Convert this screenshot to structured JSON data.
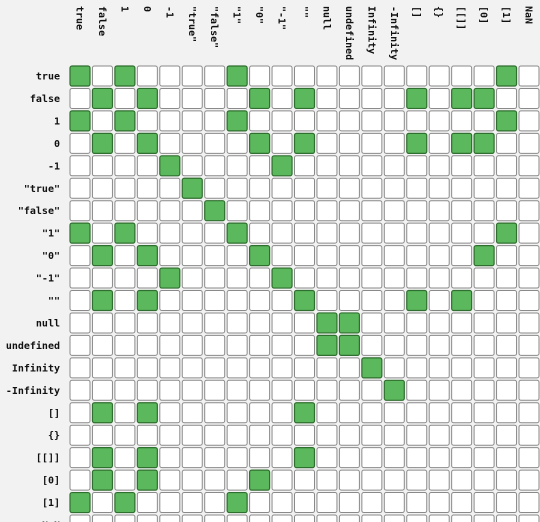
{
  "chart_data": {
    "type": "heatmap",
    "title": "",
    "xlabel": "",
    "ylabel": "",
    "values_legend": {
      "true": "true",
      "false": "false"
    },
    "col_labels": [
      "true",
      "false",
      "1",
      "0",
      "-1",
      "\"true\"",
      "\"false\"",
      "\"1\"",
      "\"0\"",
      "\"-1\"",
      "\"\"",
      "null",
      "undefined",
      "Infinity",
      "-Infinity",
      "[]",
      "{}",
      "[[]]",
      "[0]",
      "[1]",
      "NaN"
    ],
    "row_labels": [
      "true",
      "false",
      "1",
      "0",
      "-1",
      "\"true\"",
      "\"false\"",
      "\"1\"",
      "\"0\"",
      "\"-1\"",
      "\"\"",
      "null",
      "undefined",
      "Infinity",
      "-Infinity",
      "[]",
      "{}",
      "[[]]",
      "[0]",
      "[1]",
      "NaN"
    ],
    "matrix": [
      [
        1,
        0,
        1,
        0,
        0,
        0,
        0,
        1,
        0,
        0,
        0,
        0,
        0,
        0,
        0,
        0,
        0,
        0,
        0,
        1,
        0
      ],
      [
        0,
        1,
        0,
        1,
        0,
        0,
        0,
        0,
        1,
        0,
        1,
        0,
        0,
        0,
        0,
        1,
        0,
        1,
        1,
        0,
        0
      ],
      [
        1,
        0,
        1,
        0,
        0,
        0,
        0,
        1,
        0,
        0,
        0,
        0,
        0,
        0,
        0,
        0,
        0,
        0,
        0,
        1,
        0
      ],
      [
        0,
        1,
        0,
        1,
        0,
        0,
        0,
        0,
        1,
        0,
        1,
        0,
        0,
        0,
        0,
        1,
        0,
        1,
        1,
        0,
        0
      ],
      [
        0,
        0,
        0,
        0,
        1,
        0,
        0,
        0,
        0,
        1,
        0,
        0,
        0,
        0,
        0,
        0,
        0,
        0,
        0,
        0,
        0
      ],
      [
        0,
        0,
        0,
        0,
        0,
        1,
        0,
        0,
        0,
        0,
        0,
        0,
        0,
        0,
        0,
        0,
        0,
        0,
        0,
        0,
        0
      ],
      [
        0,
        0,
        0,
        0,
        0,
        0,
        1,
        0,
        0,
        0,
        0,
        0,
        0,
        0,
        0,
        0,
        0,
        0,
        0,
        0,
        0
      ],
      [
        1,
        0,
        1,
        0,
        0,
        0,
        0,
        1,
        0,
        0,
        0,
        0,
        0,
        0,
        0,
        0,
        0,
        0,
        0,
        1,
        0
      ],
      [
        0,
        1,
        0,
        1,
        0,
        0,
        0,
        0,
        1,
        0,
        0,
        0,
        0,
        0,
        0,
        0,
        0,
        0,
        1,
        0,
        0
      ],
      [
        0,
        0,
        0,
        0,
        1,
        0,
        0,
        0,
        0,
        1,
        0,
        0,
        0,
        0,
        0,
        0,
        0,
        0,
        0,
        0,
        0
      ],
      [
        0,
        1,
        0,
        1,
        0,
        0,
        0,
        0,
        0,
        0,
        1,
        0,
        0,
        0,
        0,
        1,
        0,
        1,
        0,
        0,
        0
      ],
      [
        0,
        0,
        0,
        0,
        0,
        0,
        0,
        0,
        0,
        0,
        0,
        1,
        1,
        0,
        0,
        0,
        0,
        0,
        0,
        0,
        0
      ],
      [
        0,
        0,
        0,
        0,
        0,
        0,
        0,
        0,
        0,
        0,
        0,
        1,
        1,
        0,
        0,
        0,
        0,
        0,
        0,
        0,
        0
      ],
      [
        0,
        0,
        0,
        0,
        0,
        0,
        0,
        0,
        0,
        0,
        0,
        0,
        0,
        1,
        0,
        0,
        0,
        0,
        0,
        0,
        0
      ],
      [
        0,
        0,
        0,
        0,
        0,
        0,
        0,
        0,
        0,
        0,
        0,
        0,
        0,
        0,
        1,
        0,
        0,
        0,
        0,
        0,
        0
      ],
      [
        0,
        1,
        0,
        1,
        0,
        0,
        0,
        0,
        0,
        0,
        1,
        0,
        0,
        0,
        0,
        0,
        0,
        0,
        0,
        0,
        0
      ],
      [
        0,
        0,
        0,
        0,
        0,
        0,
        0,
        0,
        0,
        0,
        0,
        0,
        0,
        0,
        0,
        0,
        0,
        0,
        0,
        0,
        0
      ],
      [
        0,
        1,
        0,
        1,
        0,
        0,
        0,
        0,
        0,
        0,
        1,
        0,
        0,
        0,
        0,
        0,
        0,
        0,
        0,
        0,
        0
      ],
      [
        0,
        1,
        0,
        1,
        0,
        0,
        0,
        0,
        1,
        0,
        0,
        0,
        0,
        0,
        0,
        0,
        0,
        0,
        0,
        0,
        0
      ],
      [
        1,
        0,
        1,
        0,
        0,
        0,
        0,
        1,
        0,
        0,
        0,
        0,
        0,
        0,
        0,
        0,
        0,
        0,
        0,
        0,
        0
      ],
      [
        0,
        0,
        0,
        0,
        0,
        0,
        0,
        0,
        0,
        0,
        0,
        0,
        0,
        0,
        0,
        0,
        0,
        0,
        0,
        0,
        0
      ]
    ],
    "colors": {
      "true": "#5cb85c",
      "false": "#ffffff",
      "true_border": "#2f6f2f",
      "false_border": "#8a8a8a",
      "background": "#f2f2f2"
    },
    "grid": true,
    "legend": "none"
  }
}
